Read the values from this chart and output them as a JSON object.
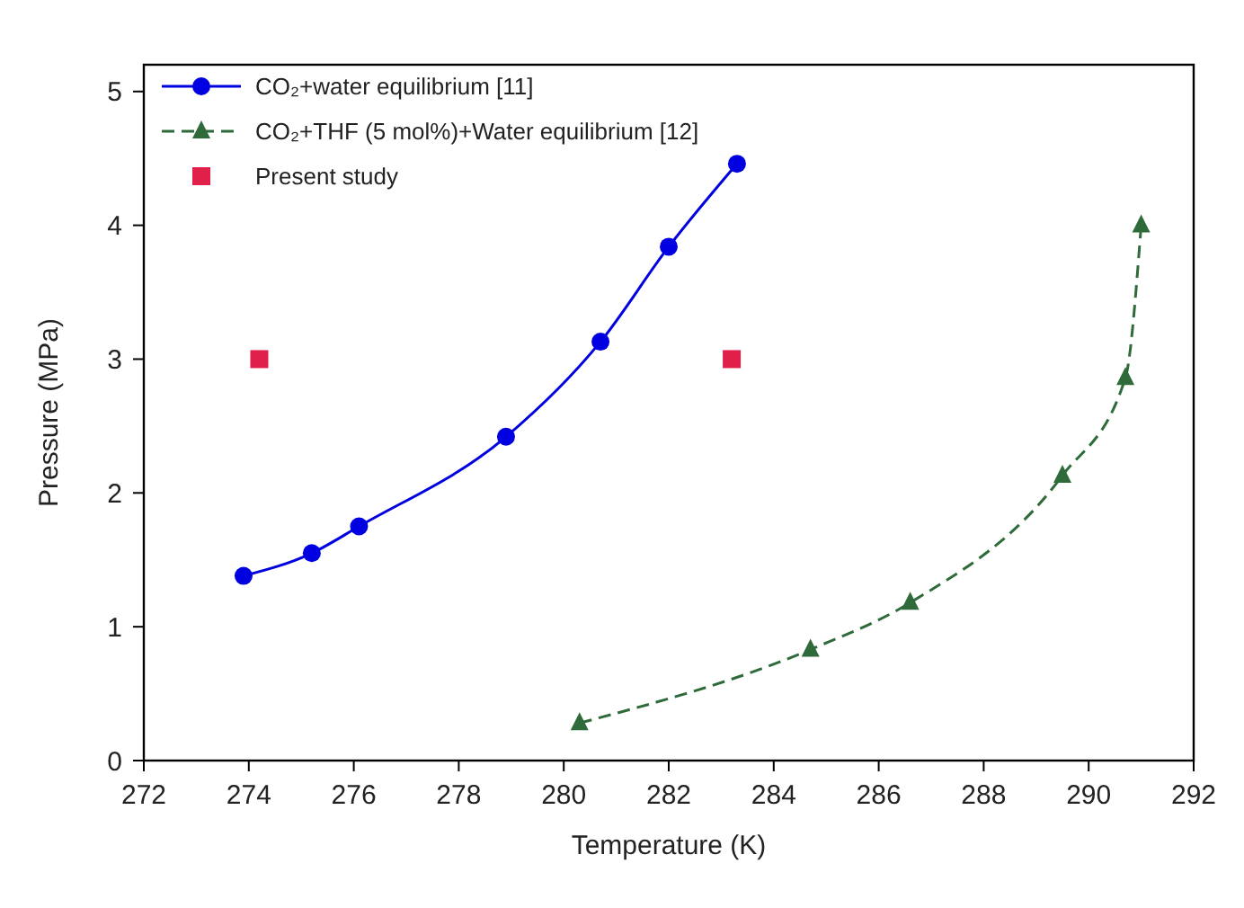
{
  "chart_data": {
    "type": "line",
    "xlabel": "Temperature (K)",
    "ylabel": "Pressure (MPa)",
    "xlim": [
      272,
      292
    ],
    "xticks": [
      272,
      274,
      276,
      278,
      280,
      282,
      284,
      286,
      288,
      290,
      292
    ],
    "ylim": [
      0,
      5.2
    ],
    "yticks": [
      0,
      1,
      2,
      3,
      4,
      5
    ],
    "grid": false,
    "legend": "top left",
    "series": [
      {
        "name": "CO₂+water equilibrium [11]",
        "color": "#0000e0",
        "marker": "circle",
        "line_style": "solid",
        "x": [
          273.9,
          275.2,
          276.1,
          278.9,
          280.7,
          282.0,
          283.3
        ],
        "values": [
          1.38,
          1.55,
          1.75,
          2.42,
          3.13,
          3.84,
          4.46
        ]
      },
      {
        "name": "CO₂+THF (5 mol%)+Water equilibrium [12]",
        "color": "#2f6b3a",
        "marker": "triangle",
        "line_style": "dashed",
        "x": [
          280.3,
          284.7,
          286.6,
          289.5,
          290.7,
          291.0
        ],
        "values": [
          0.28,
          0.83,
          1.18,
          2.13,
          2.86,
          4.0
        ]
      },
      {
        "name": "Present study",
        "type": "scatter",
        "color": "#e0204a",
        "marker": "square",
        "x": [
          274.2,
          283.2
        ],
        "values": [
          3.0,
          3.0
        ]
      }
    ]
  }
}
